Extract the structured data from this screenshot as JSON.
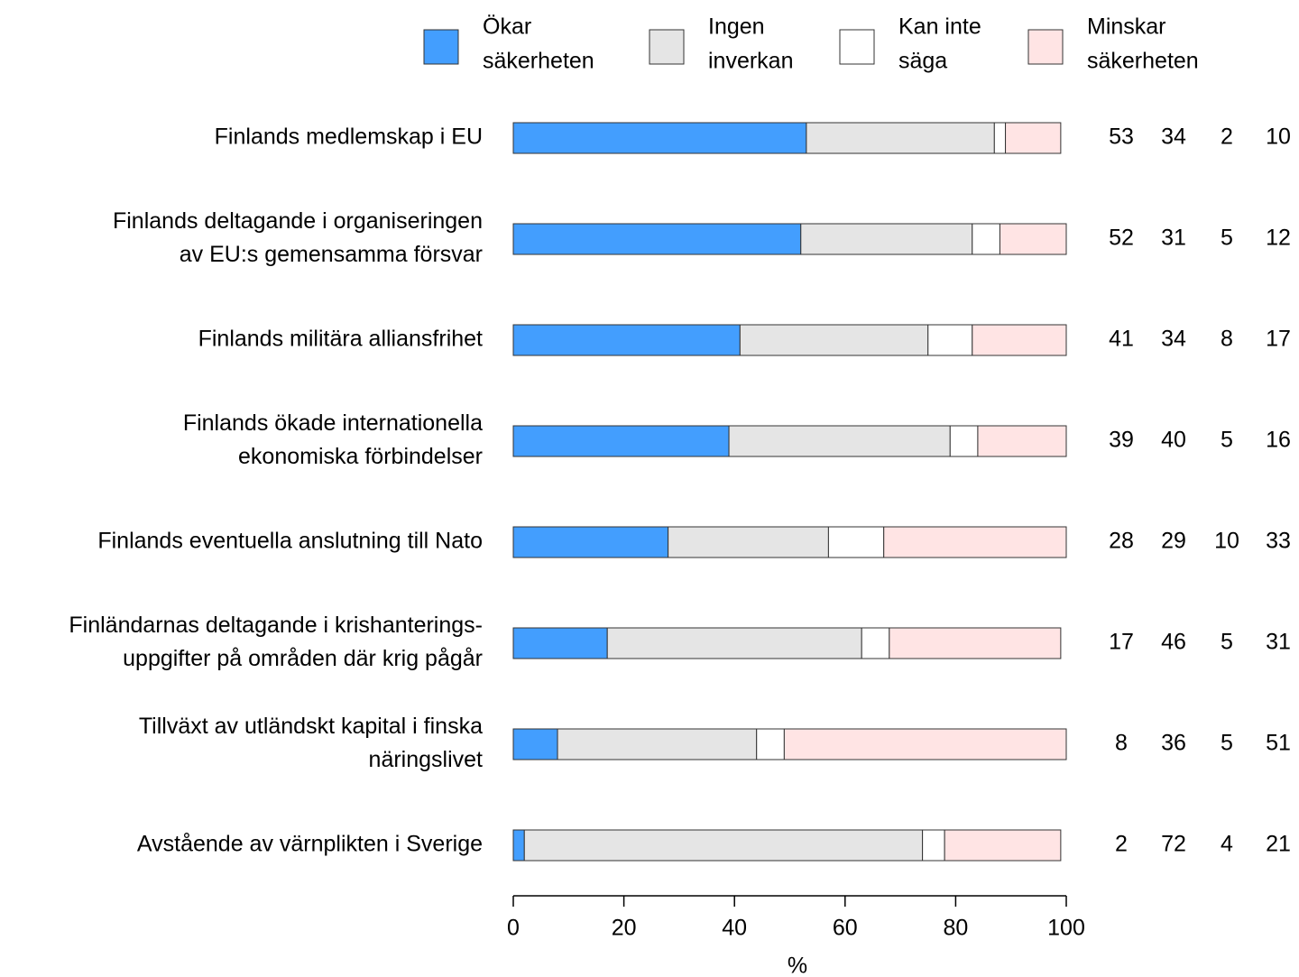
{
  "chart_data": {
    "type": "stacked-bar-horizontal",
    "categories": [
      [
        "Finlands medlemskap i EU"
      ],
      [
        "Finlands deltagande i organiseringen",
        "av EU:s gemensamma försvar"
      ],
      [
        "Finlands militära alliansfrihet"
      ],
      [
        "Finlands ökade internationella",
        "ekonomiska förbindelser"
      ],
      [
        "Finlands eventuella anslutning till Nato"
      ],
      [
        "Finländarnas deltagande i krishanterings-",
        "uppgifter på områden där krig pågår"
      ],
      [
        "Tillväxt av utländskt kapital i finska",
        "näringslivet"
      ],
      [
        "Avstående av värnplikten i Sverige"
      ]
    ],
    "series": [
      {
        "name": [
          "Ökar",
          "säkerheten"
        ],
        "color": "#439efe",
        "values": [
          53,
          52,
          41,
          39,
          28,
          17,
          8,
          2
        ]
      },
      {
        "name": [
          "Ingen",
          "inverkan"
        ],
        "color": "#e5e5e5",
        "values": [
          34,
          31,
          34,
          40,
          29,
          46,
          36,
          72
        ]
      },
      {
        "name": [
          "Kan inte",
          "säga"
        ],
        "color": "#ffffff",
        "values": [
          2,
          5,
          8,
          5,
          10,
          5,
          5,
          4
        ]
      },
      {
        "name": [
          "Minskar",
          "säkerheten"
        ],
        "color": "#ffe4e4",
        "values": [
          10,
          12,
          17,
          16,
          33,
          31,
          51,
          21
        ]
      }
    ],
    "xlim": [
      0,
      100
    ],
    "xticks": [
      0,
      20,
      40,
      60,
      80,
      100
    ],
    "xlabel": "%",
    "legend": "top"
  }
}
